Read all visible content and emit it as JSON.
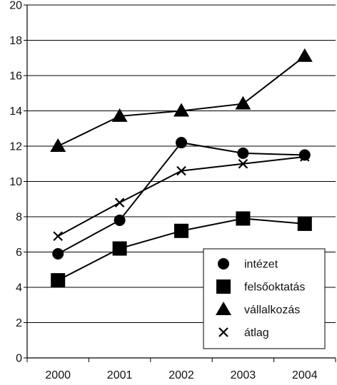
{
  "chart_data": {
    "type": "line",
    "categories": [
      "2000",
      "2001",
      "2002",
      "2003",
      "2004"
    ],
    "ylim": [
      0,
      20
    ],
    "yticks": [
      0,
      2,
      4,
      6,
      8,
      10,
      12,
      14,
      16,
      18,
      20
    ],
    "grid": true,
    "legend_position": "bottom-right",
    "series": [
      {
        "name": "intézet",
        "marker": "circle",
        "values": [
          5.9,
          7.8,
          12.2,
          11.6,
          11.5
        ]
      },
      {
        "name": "felsőoktatás",
        "marker": "square",
        "values": [
          4.4,
          6.2,
          7.2,
          7.9,
          7.6
        ]
      },
      {
        "name": "vállalkozás",
        "marker": "triangle",
        "values": [
          12.0,
          13.7,
          14.0,
          14.4,
          17.1
        ]
      },
      {
        "name": "átlag",
        "marker": "cross",
        "values": [
          6.9,
          8.8,
          10.6,
          11.0,
          11.4
        ]
      }
    ],
    "colors": {
      "line": "#000000",
      "grid": "#000000",
      "plot_bg": "#ffffff"
    }
  }
}
